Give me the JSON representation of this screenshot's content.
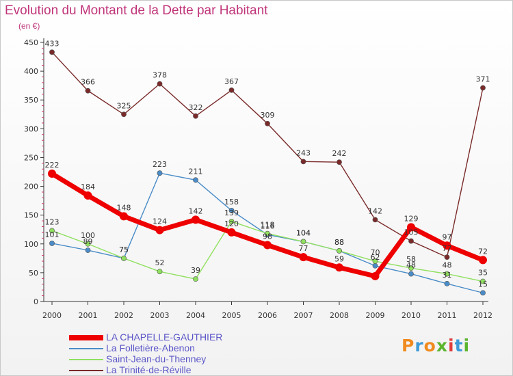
{
  "chart_title": "Evolution du Montant de la Dette par Habitant",
  "unit_label": "(en €)",
  "logo": "Proxiti",
  "logo_colors": [
    "#f08a1e",
    "#3d9ad8",
    "#f08a1e",
    "#5ab52d",
    "#e23c3c",
    "#3d9ad8",
    "#5ab52d"
  ],
  "chart_data": {
    "type": "line",
    "x": [
      "2000",
      "2001",
      "2002",
      "2003",
      "2004",
      "2005",
      "2006",
      "2007",
      "2008",
      "2009",
      "2010",
      "2011",
      "2012"
    ],
    "ylim": [
      0,
      450
    ],
    "yticks": [
      0,
      50,
      100,
      150,
      200,
      250,
      300,
      350,
      400,
      450
    ],
    "grid": false,
    "legend": "bottom-left",
    "series": [
      {
        "name": "LA CHAPELLE-GAUTHIER",
        "color": "#ee0000",
        "values": [
          222,
          184,
          148,
          124,
          142,
          120,
          98,
          77,
          59,
          44,
          129,
          97,
          72
        ],
        "labels": [
          "222",
          "184",
          "148",
          "124",
          "142",
          "120",
          "98",
          "77",
          "59",
          "",
          "129",
          "97",
          "72"
        ]
      },
      {
        "name": "La Folletière-Abenon",
        "color": "#4a8cc8",
        "values": [
          101,
          89,
          75,
          223,
          211,
          158,
          116,
          104,
          88,
          62,
          48,
          31,
          15
        ],
        "labels": [
          "101",
          "89",
          "75",
          "223",
          "211",
          "158",
          "116",
          "104",
          "88",
          "62",
          "48",
          "31",
          "15"
        ]
      },
      {
        "name": "Saint-Jean-du-Thenney",
        "color": "#90e060",
        "values": [
          123,
          100,
          75,
          52,
          39,
          139,
          118,
          104,
          88,
          70,
          58,
          48,
          35
        ],
        "labels": [
          "123",
          "100",
          "75",
          "52",
          "39",
          "139",
          "118",
          "104",
          "88",
          "70",
          "58",
          "48",
          "35"
        ]
      },
      {
        "name": "La Trinité-de-Réville",
        "color": "#7a2a2a",
        "values": [
          433,
          366,
          325,
          378,
          322,
          367,
          309,
          243,
          242,
          142,
          105,
          77,
          371
        ],
        "labels": [
          "433",
          "366",
          "325",
          "378",
          "322",
          "367",
          "309",
          "243",
          "242",
          "142",
          "105",
          "77",
          "371"
        ]
      }
    ]
  }
}
